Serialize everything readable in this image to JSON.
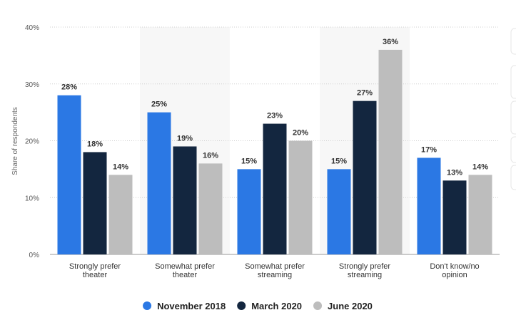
{
  "chart_data": {
    "type": "bar",
    "categories": [
      [
        "Strongly prefer",
        "theater"
      ],
      [
        "Somewhat prefer",
        "theater"
      ],
      [
        "Somewhat prefer",
        "streaming"
      ],
      [
        "Strongly prefer",
        "streaming"
      ],
      [
        "Don't know/no",
        "opinion"
      ]
    ],
    "series": [
      {
        "name": "November 2018",
        "color": "#2b78e4",
        "values": [
          28,
          25,
          15,
          15,
          17
        ],
        "labels": [
          "28%",
          "25%",
          "15%",
          "15%",
          "17%"
        ]
      },
      {
        "name": "March 2020",
        "color": "#13263f",
        "values": [
          18,
          19,
          23,
          27,
          13
        ],
        "labels": [
          "18%",
          "19%",
          "23%",
          "27%",
          "13%"
        ]
      },
      {
        "name": "June 2020",
        "color": "#bdbdbd",
        "values": [
          14,
          16,
          20,
          36,
          14
        ],
        "labels": [
          "14%",
          "16%",
          "20%",
          "36%",
          "14%"
        ]
      }
    ],
    "ylabel": "Share of respondents",
    "ylim": [
      0,
      40
    ],
    "yticks": [
      0,
      10,
      20,
      30,
      40
    ],
    "ytick_labels": [
      "0%",
      "10%",
      "20%",
      "30%",
      "40%"
    ],
    "grid": true,
    "legend_position": "bottom"
  }
}
